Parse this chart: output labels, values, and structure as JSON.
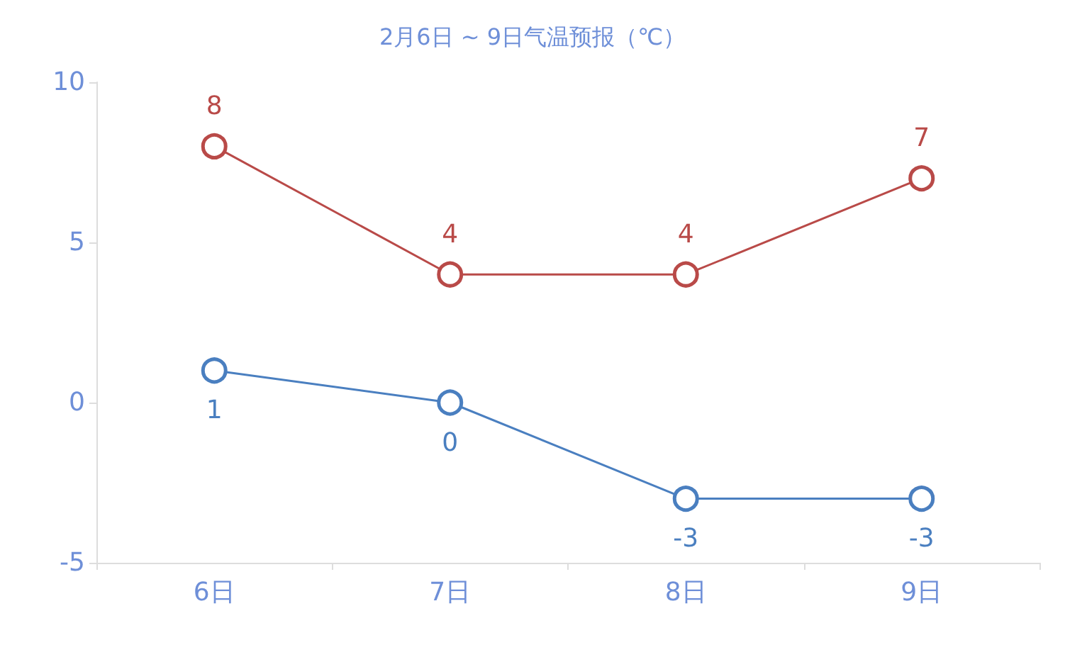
{
  "chart_data": {
    "type": "line",
    "title": "2月6日 ~ 9日气温预报（℃）",
    "categories": [
      "6日",
      "7日",
      "8日",
      "9日"
    ],
    "series": [
      {
        "color": "#b94a48",
        "values": [
          8,
          4,
          4,
          7
        ]
      },
      {
        "color": "#4a7fc0",
        "values": [
          1,
          0,
          -3,
          -3
        ]
      }
    ],
    "ylim": [
      -5,
      10
    ],
    "yticks": [
      -5,
      0,
      5,
      10
    ],
    "grid": false,
    "marker": "circle",
    "line_style": "solid",
    "data_labels": true
  }
}
